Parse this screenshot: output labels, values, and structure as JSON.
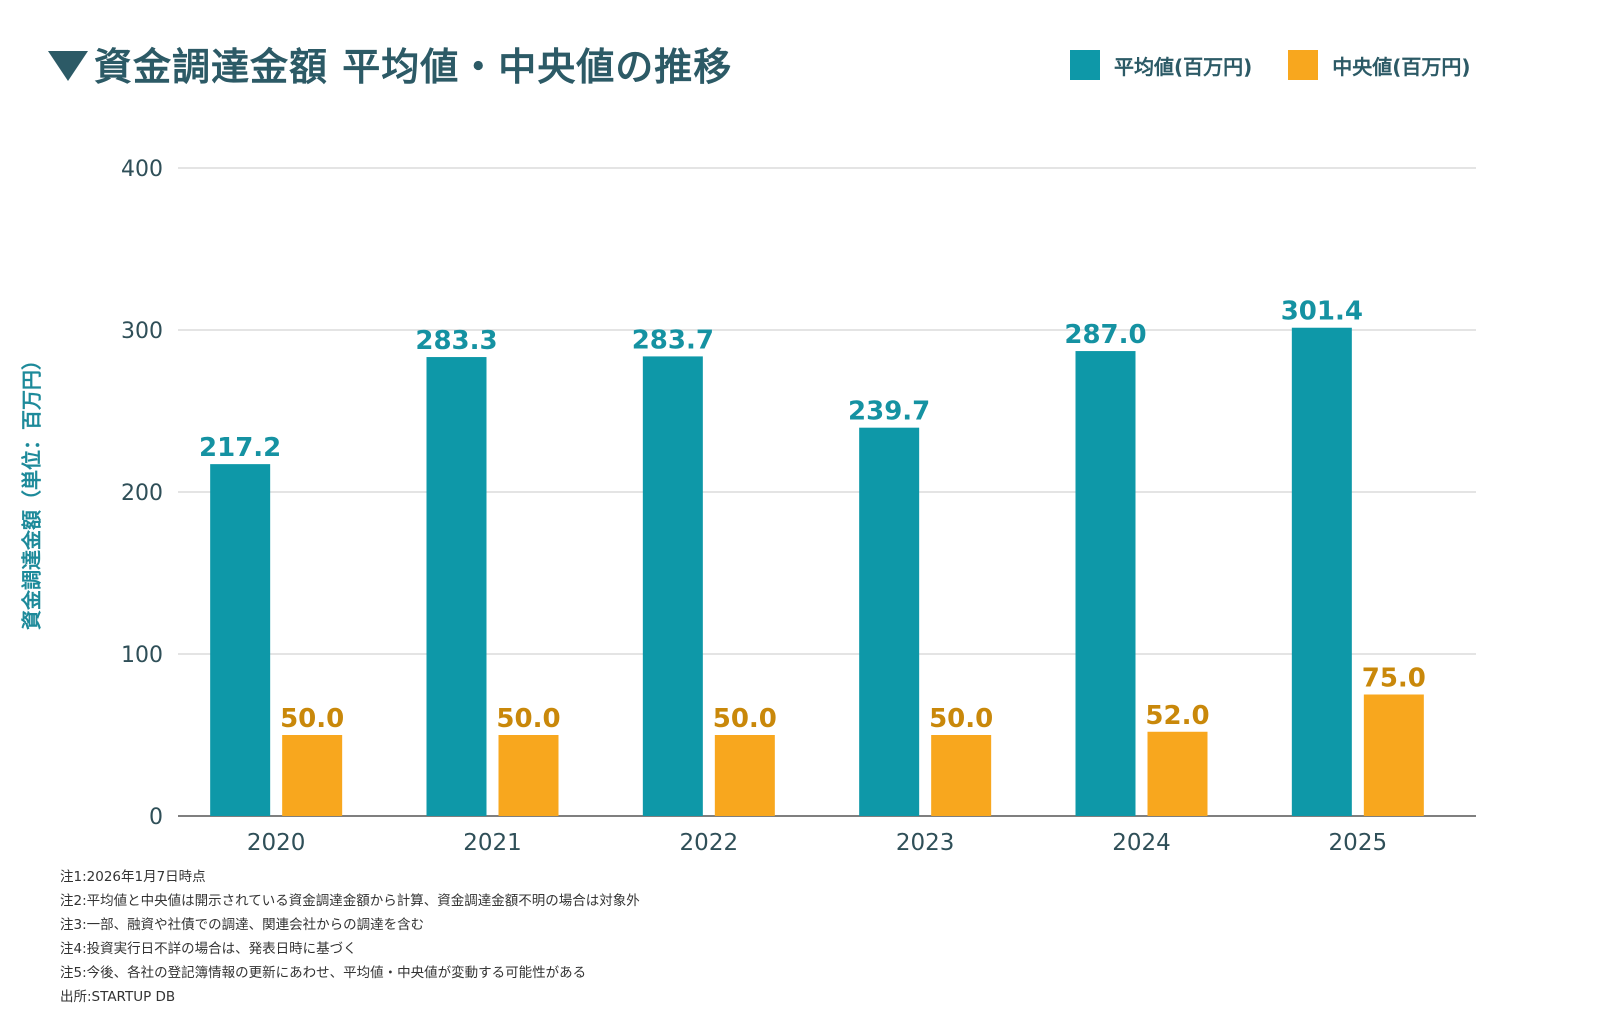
{
  "title": "資金調達金額 平均値・中央値の推移",
  "legend": {
    "mean_label": "平均値(百万円)",
    "median_label": "中央値(百万円)"
  },
  "colors": {
    "mean": "#0e98a8",
    "median": "#f8a71e",
    "mean_label_text": "#1592a2",
    "median_label_text": "#c9880a",
    "axis_text": "#2f4f58",
    "grid": "#c8c8c8"
  },
  "chart_data": {
    "type": "bar",
    "categories": [
      "2020",
      "2021",
      "2022",
      "2023",
      "2024",
      "2025"
    ],
    "series": [
      {
        "name": "平均値(百万円)",
        "values": [
          217.2,
          283.3,
          283.7,
          239.7,
          287.0,
          301.4
        ],
        "labels": [
          "217.2",
          "283.3",
          "283.7",
          "239.7",
          "287.0",
          "301.4"
        ]
      },
      {
        "name": "中央値(百万円)",
        "values": [
          50.0,
          50.0,
          50.0,
          50.0,
          52.0,
          75.0
        ],
        "labels": [
          "50.0",
          "50.0",
          "50.0",
          "50.0",
          "52.0",
          "75.0"
        ]
      }
    ],
    "ylim": [
      0,
      400
    ],
    "yticks": [
      0,
      100,
      200,
      300,
      400
    ],
    "ylabel": "資金調達金額（単位：百万円）",
    "xlabel": "",
    "grid": true,
    "legend_position": "top-right"
  },
  "notes": [
    "注1:2026年1月7日時点",
    "注2:平均値と中央値は開示されている資金調達金額から計算、資金調達金額不明の場合は対象外",
    "注3:一部、融資や社債での調達、関連会社からの調達を含む",
    "注4:投資実行日不詳の場合は、発表日時に基づく",
    "注5:今後、各社の登記簿情報の更新にあわせ、平均値・中央値が変動する可能性がある",
    "出所:STARTUP DB"
  ]
}
